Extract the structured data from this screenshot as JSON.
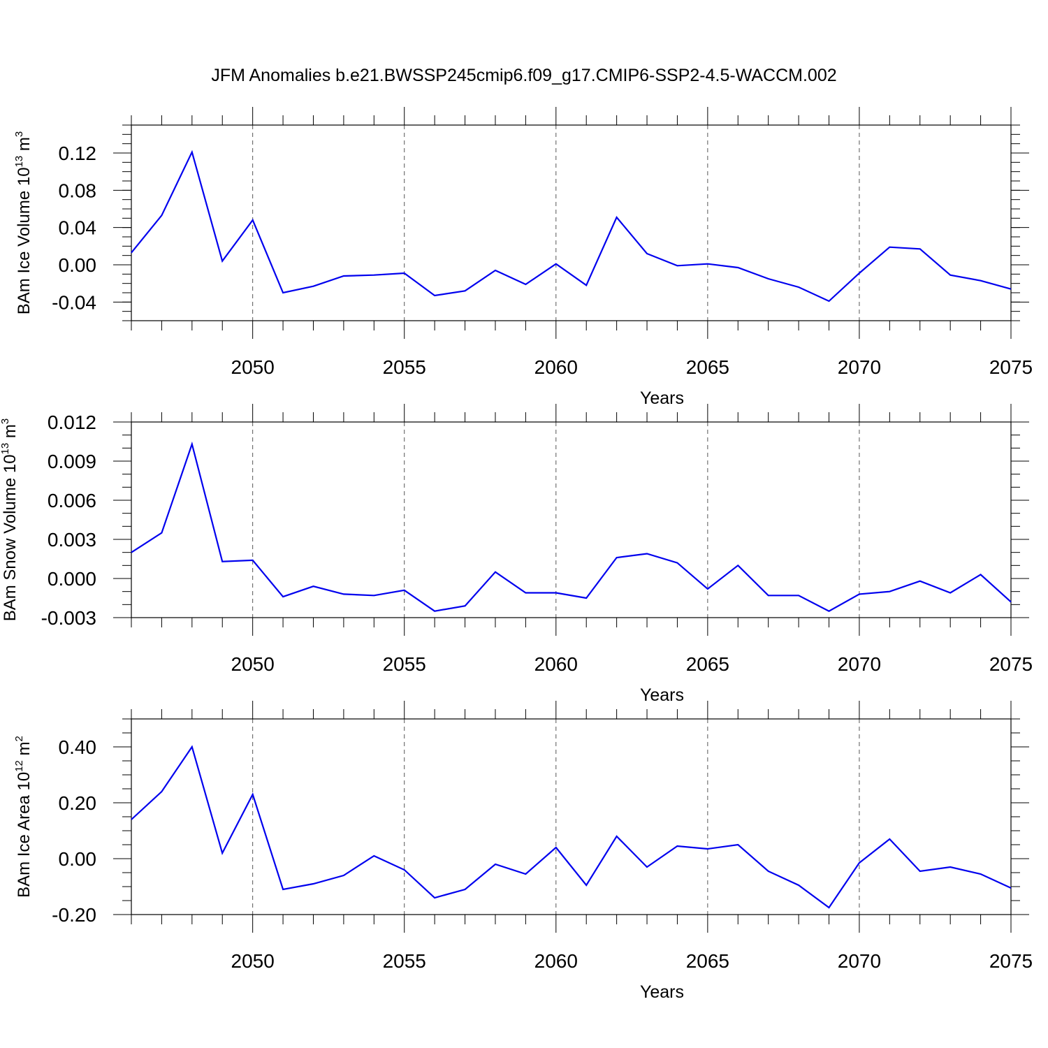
{
  "chart_data": {
    "title": "JFM Anomalies b.e21.BWSSP245cmip6.f09_g17.CMIP6-SSP2-4.5-WACCM.002",
    "line_color": "#0000ee",
    "years": [
      2046,
      2047,
      2048,
      2049,
      2050,
      2051,
      2052,
      2053,
      2054,
      2055,
      2056,
      2057,
      2058,
      2059,
      2060,
      2061,
      2062,
      2063,
      2064,
      2065,
      2066,
      2067,
      2068,
      2069,
      2070,
      2071,
      2072,
      2073,
      2074,
      2075
    ],
    "panels": [
      {
        "type": "line",
        "ylabel_main": "BAm Ice Volume 10",
        "ylabel_exp": "13",
        "ylabel_unit": "m",
        "ylabel_unit_exp": "3",
        "xlabel": "Years",
        "xlim": [
          2046,
          2075
        ],
        "ylim": [
          -0.06,
          0.15
        ],
        "yticks": [
          -0.04,
          0.0,
          0.04,
          0.08,
          0.12
        ],
        "ytick_labels": [
          "-0.04",
          "0.00",
          "0.04",
          "0.08",
          "0.12"
        ],
        "yminor_step": 0.01,
        "xticks": [
          2050,
          2055,
          2060,
          2065,
          2070,
          2075
        ],
        "xtick_labels": [
          "2050",
          "2055",
          "2060",
          "2065",
          "2070",
          "2075"
        ],
        "values": [
          0.013,
          0.053,
          0.121,
          0.004,
          0.048,
          -0.03,
          -0.023,
          -0.012,
          -0.011,
          -0.009,
          -0.033,
          -0.028,
          -0.006,
          -0.021,
          0.001,
          -0.022,
          0.051,
          0.012,
          -0.001,
          0.001,
          -0.003,
          -0.015,
          -0.024,
          -0.039,
          -0.009,
          0.019,
          0.017,
          -0.011,
          -0.017,
          -0.026
        ]
      },
      {
        "type": "line",
        "ylabel_main": "BAm Snow Volume 10",
        "ylabel_exp": "13",
        "ylabel_unit": "m",
        "ylabel_unit_exp": "3",
        "xlabel": "Years",
        "xlim": [
          2046,
          2075
        ],
        "ylim": [
          -0.003,
          0.012
        ],
        "yticks": [
          -0.003,
          0.0,
          0.003,
          0.006,
          0.009,
          0.012
        ],
        "ytick_labels": [
          "-0.003",
          "0.000",
          "0.003",
          "0.006",
          "0.009",
          "0.012"
        ],
        "yminor_step": 0.001,
        "xticks": [
          2050,
          2055,
          2060,
          2065,
          2070,
          2075
        ],
        "xtick_labels": [
          "2050",
          "2055",
          "2060",
          "2065",
          "2070",
          "2075"
        ],
        "values": [
          0.002,
          0.0035,
          0.0103,
          0.0013,
          0.0014,
          -0.0014,
          -0.0006,
          -0.0012,
          -0.0013,
          -0.0009,
          -0.0025,
          -0.0021,
          0.0005,
          -0.0011,
          -0.0011,
          -0.0015,
          0.0016,
          0.0019,
          0.0012,
          -0.0008,
          0.001,
          -0.0013,
          -0.0013,
          -0.0025,
          -0.0012,
          -0.001,
          -0.0002,
          -0.0011,
          0.0003,
          -0.0018
        ]
      },
      {
        "type": "line",
        "ylabel_main": "BAm Ice Area 10",
        "ylabel_exp": "12",
        "ylabel_unit": "m",
        "ylabel_unit_exp": "2",
        "xlabel": "Years",
        "xlim": [
          2046,
          2075
        ],
        "ylim": [
          -0.2,
          0.5
        ],
        "yticks": [
          -0.2,
          0.0,
          0.2,
          0.4
        ],
        "ytick_labels": [
          "-0.20",
          "0.00",
          "0.20",
          "0.40"
        ],
        "yminor_step": 0.05,
        "xticks": [
          2050,
          2055,
          2060,
          2065,
          2070,
          2075
        ],
        "xtick_labels": [
          "2050",
          "2055",
          "2060",
          "2065",
          "2070",
          "2075"
        ],
        "values": [
          0.14,
          0.24,
          0.4,
          0.02,
          0.23,
          -0.11,
          -0.09,
          -0.06,
          0.01,
          -0.04,
          -0.14,
          -0.11,
          -0.02,
          -0.055,
          0.04,
          -0.095,
          0.08,
          -0.03,
          0.045,
          0.035,
          0.05,
          -0.045,
          -0.095,
          -0.175,
          -0.015,
          0.07,
          -0.045,
          -0.03,
          -0.055,
          -0.105
        ]
      }
    ]
  }
}
